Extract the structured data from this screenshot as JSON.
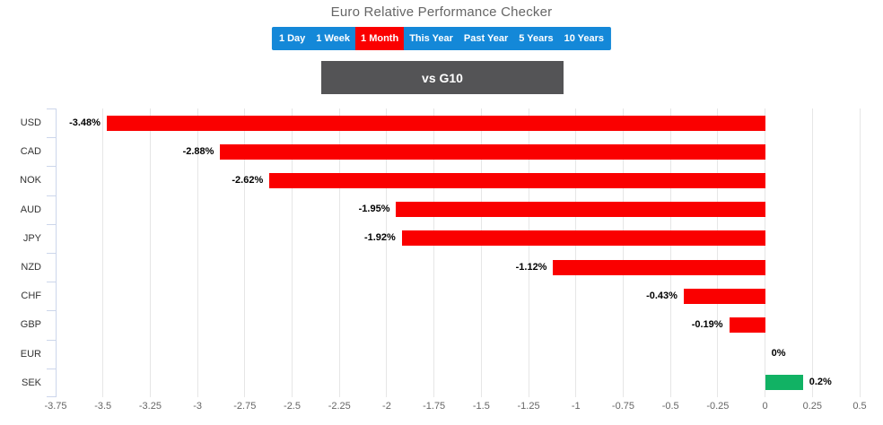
{
  "title": "Euro Relative Performance Checker",
  "period_tabs": {
    "bar_color": "#1488d8",
    "active_color": "#fa0000",
    "items": [
      {
        "label": "1 Day",
        "active": false
      },
      {
        "label": "1 Week",
        "active": false
      },
      {
        "label": "1 Month",
        "active": true
      },
      {
        "label": "This Year",
        "active": false
      },
      {
        "label": "Past Year",
        "active": false
      },
      {
        "label": "5 Years",
        "active": false
      },
      {
        "label": "10 Years",
        "active": false
      }
    ]
  },
  "group_header": {
    "label": "vs G10",
    "bg_color": "#545456"
  },
  "chart_data": {
    "type": "bar",
    "orientation": "horizontal",
    "title": "",
    "categories": [
      "USD",
      "CAD",
      "NOK",
      "AUD",
      "JPY",
      "NZD",
      "CHF",
      "GBP",
      "EUR",
      "SEK"
    ],
    "values": [
      -3.48,
      -2.88,
      -2.62,
      -1.95,
      -1.92,
      -1.12,
      -0.43,
      -0.19,
      0,
      0.2
    ],
    "value_labels": [
      "-3.48%",
      "-2.88%",
      "-2.62%",
      "-1.95%",
      "-1.92%",
      "-1.12%",
      "-0.43%",
      "-0.19%",
      "0%",
      "0.2%"
    ],
    "unit": "%",
    "xlim": [
      -3.75,
      0.5
    ],
    "tick_step": 0.25,
    "x_ticks": [
      -3.75,
      -3.5,
      -3.25,
      -3,
      -2.75,
      -2.5,
      -2.25,
      -2,
      -1.75,
      -1.5,
      -1.25,
      -1,
      -0.75,
      -0.5,
      -0.25,
      0,
      0.25,
      0.5
    ],
    "x_tick_labels": [
      "-3.75",
      "-3.5",
      "-3.25",
      "-3",
      "-2.75",
      "-2.5",
      "-2.25",
      "-2",
      "-1.75",
      "-1.5",
      "-1.25",
      "-1",
      "-0.75",
      "-0.5",
      "-0.25",
      "0",
      "0.25",
      "0.5"
    ],
    "grid": true,
    "negative_color": "#fa0000",
    "positive_color": "#11b264",
    "grid_color": "#e6e6e6",
    "axis_line_color": "#ccd6eb",
    "label_color": "#000000",
    "category_label_color": "#333333",
    "tick_label_color": "#666666"
  }
}
